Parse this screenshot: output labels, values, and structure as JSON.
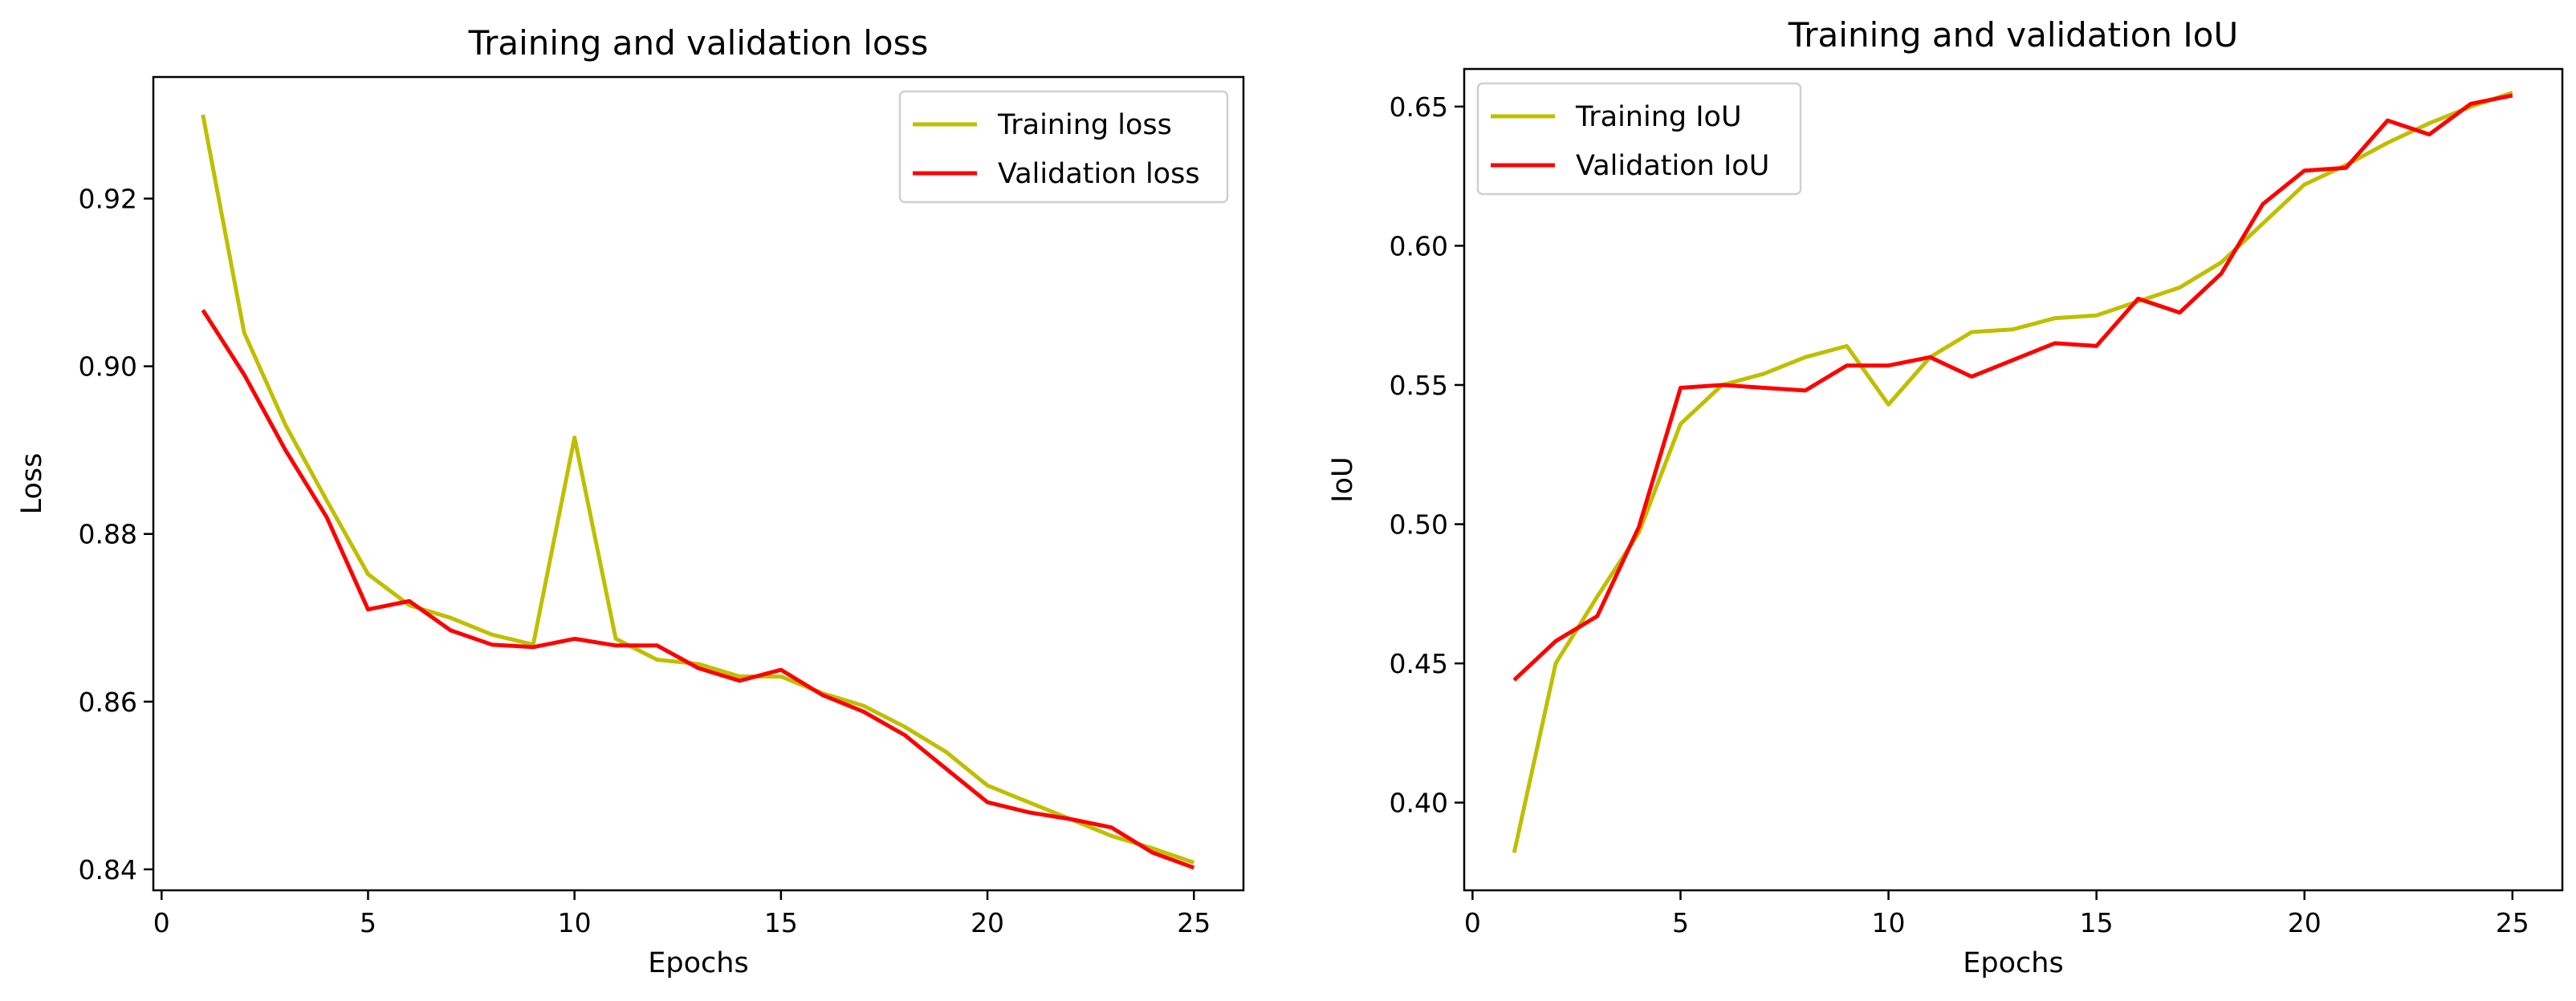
{
  "chart_data": [
    {
      "type": "line",
      "title": "Training and validation loss",
      "xlabel": "Epochs",
      "ylabel": "Loss",
      "xlim": [
        -0.2,
        26.2
      ],
      "ylim": [
        0.8375,
        0.9345
      ],
      "xticks": [
        0,
        5,
        10,
        15,
        20,
        25
      ],
      "yticks": [
        0.84,
        0.86,
        0.88,
        0.9,
        0.92
      ],
      "ytick_labels": [
        "0.84",
        "0.86",
        "0.88",
        "0.90",
        "0.92"
      ],
      "legend_position": "top-right",
      "x": [
        1,
        2,
        3,
        4,
        5,
        6,
        7,
        8,
        9,
        10,
        11,
        12,
        13,
        14,
        15,
        16,
        17,
        18,
        19,
        20,
        21,
        22,
        23,
        24,
        25
      ],
      "series": [
        {
          "name": "Training loss",
          "color": "#bfbf00",
          "values": [
            0.93,
            0.904,
            0.893,
            0.884,
            0.8752,
            0.8715,
            0.87,
            0.868,
            0.8668,
            0.8915,
            0.8675,
            0.865,
            0.8645,
            0.863,
            0.863,
            0.861,
            0.8595,
            0.857,
            0.854,
            0.85,
            0.848,
            0.846,
            0.844,
            0.8425,
            0.8408
          ]
        },
        {
          "name": "Validation loss",
          "color": "#ff0000",
          "values": [
            0.9067,
            0.899,
            0.89,
            0.882,
            0.871,
            0.872,
            0.8685,
            0.8668,
            0.8665,
            0.8675,
            0.8667,
            0.8667,
            0.864,
            0.8625,
            0.8638,
            0.8608,
            0.8588,
            0.856,
            0.852,
            0.848,
            0.8468,
            0.846,
            0.845,
            0.842,
            0.8402
          ]
        }
      ]
    },
    {
      "type": "line",
      "title": "Training and validation IoU",
      "xlabel": "Epochs",
      "ylabel": "IoU",
      "xlim": [
        -0.2,
        26.2
      ],
      "ylim": [
        0.3685,
        0.6635
      ],
      "xticks": [
        0,
        5,
        10,
        15,
        20,
        25
      ],
      "yticks": [
        0.4,
        0.45,
        0.5,
        0.55,
        0.6,
        0.65
      ],
      "ytick_labels": [
        "0.40",
        "0.45",
        "0.50",
        "0.55",
        "0.60",
        "0.65"
      ],
      "legend_position": "top-left",
      "x": [
        1,
        2,
        3,
        4,
        5,
        6,
        7,
        8,
        9,
        10,
        11,
        12,
        13,
        14,
        15,
        16,
        17,
        18,
        19,
        20,
        21,
        22,
        23,
        24,
        25
      ],
      "series": [
        {
          "name": "Training IoU",
          "color": "#bfbf00",
          "values": [
            0.382,
            0.45,
            0.474,
            0.497,
            0.536,
            0.55,
            0.554,
            0.56,
            0.564,
            0.543,
            0.56,
            0.569,
            0.57,
            0.574,
            0.575,
            0.58,
            0.585,
            0.594,
            0.608,
            0.622,
            0.629,
            0.637,
            0.644,
            0.65,
            0.655
          ]
        },
        {
          "name": "Validation IoU",
          "color": "#ff0000",
          "values": [
            0.444,
            0.458,
            0.467,
            0.499,
            0.549,
            0.55,
            0.549,
            0.548,
            0.557,
            0.557,
            0.56,
            0.553,
            0.559,
            0.565,
            0.564,
            0.581,
            0.576,
            0.59,
            0.615,
            0.627,
            0.628,
            0.645,
            0.64,
            0.651,
            0.654
          ]
        }
      ]
    }
  ]
}
